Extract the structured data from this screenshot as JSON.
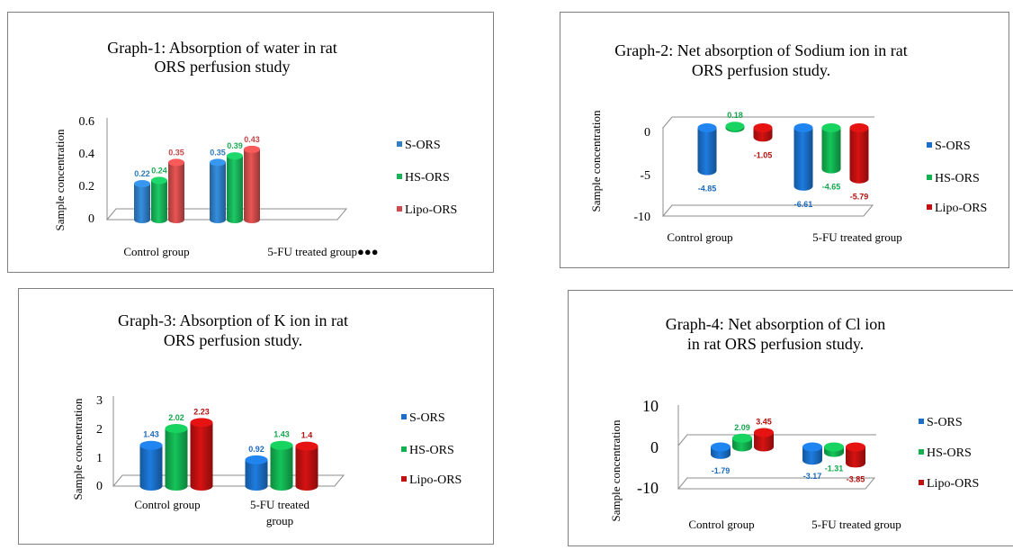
{
  "chart_data": [
    {
      "type": "bar",
      "title": [
        "Graph-1: Absorption of water in rat",
        "ORS perfusion study"
      ],
      "ylabel": "Sample concentration",
      "categories": [
        "Control group",
        "5-FU treated group●●●"
      ],
      "yticks": [
        "0",
        "0.2",
        "0.4",
        "0.6"
      ],
      "ylim": [
        0,
        0.6
      ],
      "series": [
        {
          "name": "S-ORS",
          "values": [
            0.22,
            0.35
          ],
          "labels": [
            "0.22",
            "0.35"
          ],
          "color": "#2f7fc8"
        },
        {
          "name": "HS-ORS",
          "values": [
            0.24,
            0.39
          ],
          "labels": [
            "0.24",
            "0.39"
          ],
          "color": "#19b45a"
        },
        {
          "name": "Lipo-ORS",
          "values": [
            0.35,
            0.43
          ],
          "labels": [
            "0.35",
            "0.43"
          ],
          "color": "#d04b4b"
        }
      ],
      "legend": "right"
    },
    {
      "type": "bar",
      "title": [
        "Graph-2: Net absorption of Sodium ion in rat",
        "ORS perfusion study."
      ],
      "ylabel": "Sample concentration",
      "categories": [
        "Control group",
        "5-FU treated group"
      ],
      "yticks": [
        "-10",
        "-5",
        "0"
      ],
      "ylim": [
        -10,
        0
      ],
      "series": [
        {
          "name": "S-ORS",
          "values": [
            -4.85,
            -6.61
          ],
          "labels": [
            "-4.85",
            "-6.61"
          ],
          "color": "#1b6fc8"
        },
        {
          "name": "HS-ORS",
          "values": [
            0.18,
            -4.65
          ],
          "labels": [
            "0.18",
            "-4.65"
          ],
          "color": "#13b050"
        },
        {
          "name": "Lipo-ORS",
          "values": [
            -1.05,
            -5.79
          ],
          "labels": [
            "-1.05",
            "-5.79"
          ],
          "color": "#c01010"
        }
      ],
      "legend": "right"
    },
    {
      "type": "bar",
      "title": [
        "Graph-3: Absorption of K ion in rat",
        "ORS perfusion study."
      ],
      "ylabel": "Sample concentration",
      "categories": [
        "Control group",
        "5-FU treated group"
      ],
      "yticks": [
        "0",
        "1",
        "2",
        "3"
      ],
      "ylim": [
        0,
        3
      ],
      "series": [
        {
          "name": "S-ORS",
          "values": [
            1.43,
            0.92
          ],
          "labels": [
            "1.43",
            "0.92"
          ],
          "color": "#1b6fc8"
        },
        {
          "name": "HS-ORS",
          "values": [
            2.02,
            1.43
          ],
          "labels": [
            "2.02",
            "1.43"
          ],
          "color": "#13b050"
        },
        {
          "name": "Lipo-ORS",
          "values": [
            2.23,
            1.4
          ],
          "labels": [
            "2.23",
            "1.4"
          ],
          "color": "#c01010"
        }
      ],
      "legend": "right"
    },
    {
      "type": "bar",
      "title": [
        "Graph-4: Net absorption of Cl  ion",
        "in rat ORS perfusion study."
      ],
      "ylabel": "Sample concentration",
      "categories": [
        "Control group",
        "5-FU treated group"
      ],
      "yticks": [
        "-10",
        "0",
        "10"
      ],
      "ylim": [
        -10,
        10
      ],
      "series": [
        {
          "name": "S-ORS",
          "values": [
            -1.79,
            -3.17
          ],
          "labels": [
            "-1.79",
            "-3.17"
          ],
          "color": "#1b6fc8"
        },
        {
          "name": "HS-ORS",
          "values": [
            2.09,
            -1.31
          ],
          "labels": [
            "2.09",
            "-1.31"
          ],
          "color": "#13b050"
        },
        {
          "name": "Lipo-ORS",
          "values": [
            3.45,
            -3.85
          ],
          "labels": [
            "3.45",
            "-3.85"
          ],
          "color": "#c01010"
        }
      ],
      "legend": "right"
    }
  ]
}
